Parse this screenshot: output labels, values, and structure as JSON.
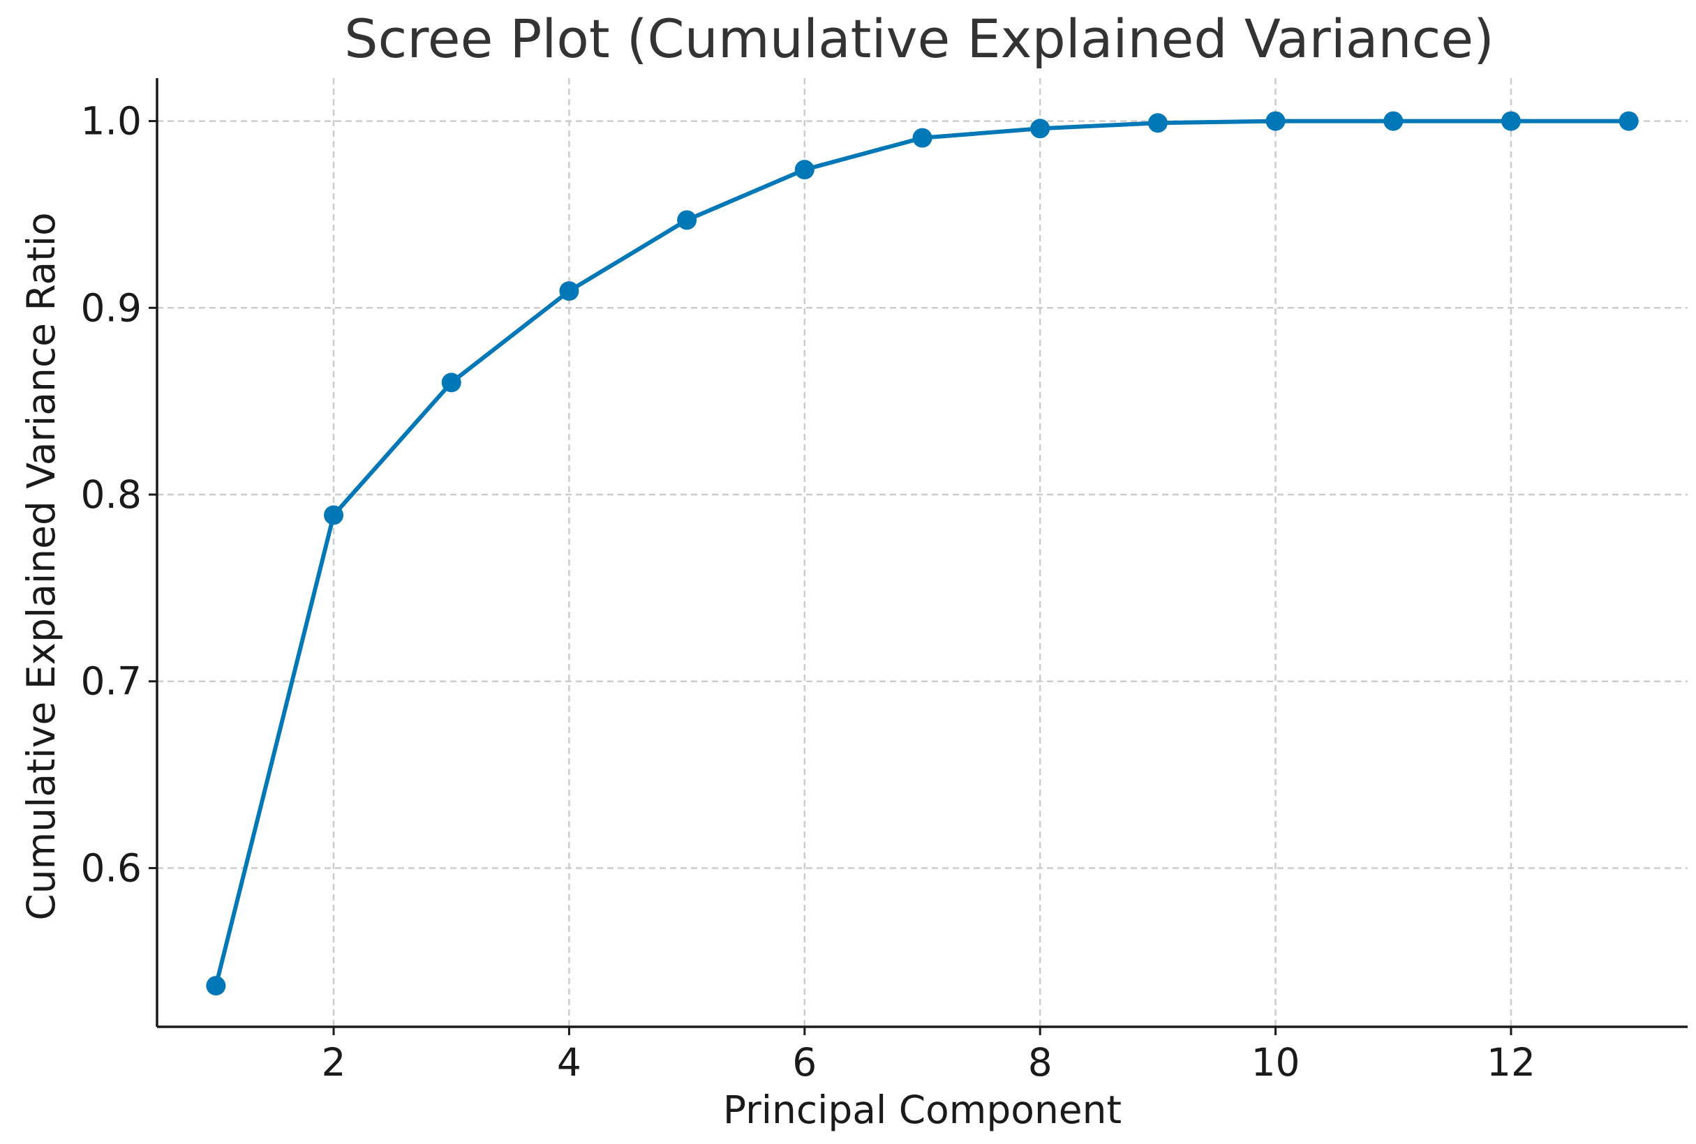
{
  "chart_data": {
    "type": "line",
    "title": "Scree Plot (Cumulative Explained Variance)",
    "xlabel": "Principal Component",
    "ylabel": "Cumulative Explained Variance Ratio",
    "x": [
      1,
      2,
      3,
      4,
      5,
      6,
      7,
      8,
      9,
      10,
      11,
      12,
      13
    ],
    "series": [
      {
        "values": [
          0.537,
          0.789,
          0.86,
          0.909,
          0.947,
          0.974,
          0.991,
          0.996,
          0.999,
          1.0,
          1.0,
          1.0,
          1.0
        ],
        "color": "#0077b6",
        "marker": "circle"
      }
    ],
    "xlim": [
      0.5,
      13.5
    ],
    "ylim": [
      0.515,
      1.023
    ],
    "xticks": [
      2,
      4,
      6,
      8,
      10,
      12
    ],
    "yticks": [
      0.6,
      0.7,
      0.8,
      0.9,
      1.0
    ],
    "xtick_labels": [
      "2",
      "4",
      "6",
      "8",
      "10",
      "12"
    ],
    "ytick_labels": [
      "0.6",
      "0.7",
      "0.8",
      "0.9",
      "1.0"
    ],
    "grid": true,
    "legend": "none"
  }
}
